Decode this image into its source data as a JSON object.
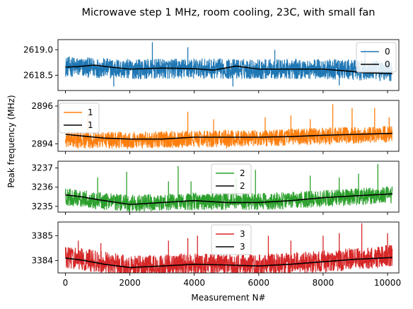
{
  "chart_data": {
    "type": "line",
    "title": "Microwave step 1 MHz, room cooling, 23C, with small fan",
    "xlabel": "Measurement N#",
    "ylabel": "Peak frequency (MHz)",
    "xlim": [
      0,
      10000
    ],
    "x_ticks": [
      0,
      2000,
      4000,
      6000,
      8000,
      10000
    ],
    "x_tick_labels": [
      "0",
      "2000",
      "4000",
      "6000",
      "8000",
      "10000"
    ],
    "n_points": 10150,
    "smooth_color": "#000000",
    "panels": [
      {
        "color": "#1f77b4",
        "ylim": [
          2618.2,
          2619.2
        ],
        "y_ticks": [
          2619.0,
          2618.5
        ],
        "y_tick_labels": [
          "2619.0",
          "2618.5"
        ],
        "legend": [
          "0",
          "0"
        ],
        "legend_loc": "upper-right",
        "raw_center": [
          [
            0,
            2618.67
          ],
          [
            2000,
            2618.62
          ],
          [
            4000,
            2618.63
          ],
          [
            6000,
            2618.62
          ],
          [
            8000,
            2618.62
          ],
          [
            10150,
            2618.58
          ]
        ],
        "noise_band": 0.2,
        "spikes_up": [
          [
            2700,
            2619.15
          ],
          [
            3800,
            2619.05
          ],
          [
            6500,
            2619.0
          ],
          [
            9300,
            2619.02
          ]
        ],
        "spikes_down": [
          [
            1500,
            2618.28
          ],
          [
            5200,
            2618.28
          ],
          [
            8500,
            2618.3
          ]
        ],
        "smooth": [
          [
            0,
            2618.66
          ],
          [
            400,
            2618.67
          ],
          [
            900,
            2618.7
          ],
          [
            1400,
            2618.66
          ],
          [
            2000,
            2618.62
          ],
          [
            3000,
            2618.64
          ],
          [
            4000,
            2618.63
          ],
          [
            4600,
            2618.6
          ],
          [
            5300,
            2618.68
          ],
          [
            6000,
            2618.62
          ],
          [
            7000,
            2618.62
          ],
          [
            8000,
            2618.62
          ],
          [
            8800,
            2618.58
          ],
          [
            9300,
            2618.55
          ],
          [
            10150,
            2618.53
          ]
        ]
      },
      {
        "color": "#ff7f0e",
        "ylim": [
          2893.6,
          2896.3
        ],
        "y_ticks": [
          2896,
          2894
        ],
        "y_tick_labels": [
          "2896",
          "2894"
        ],
        "legend": [
          "1",
          "1"
        ],
        "legend_loc": "upper-left",
        "raw_center": [
          [
            0,
            2894.2
          ],
          [
            2000,
            2894.2
          ],
          [
            4000,
            2894.25
          ],
          [
            6000,
            2894.3
          ],
          [
            8000,
            2894.4
          ],
          [
            10150,
            2894.5
          ]
        ],
        "noise_band": 0.45,
        "spikes_up": [
          [
            700,
            2895.6
          ],
          [
            3800,
            2895.7
          ],
          [
            4600,
            2895.3
          ],
          [
            6200,
            2895.4
          ],
          [
            7000,
            2895.5
          ],
          [
            7600,
            2895.3
          ],
          [
            8300,
            2896.1
          ],
          [
            8900,
            2895.9
          ],
          [
            9600,
            2895.9
          ],
          [
            10050,
            2895.4
          ]
        ],
        "spikes_down": [
          [
            5000,
            2893.75
          ]
        ],
        "smooth": [
          [
            0,
            2894.5
          ],
          [
            600,
            2894.4
          ],
          [
            1200,
            2894.3
          ],
          [
            2000,
            2894.25
          ],
          [
            3000,
            2894.25
          ],
          [
            4000,
            2894.35
          ],
          [
            5000,
            2894.35
          ],
          [
            6000,
            2894.35
          ],
          [
            7000,
            2894.38
          ],
          [
            8000,
            2894.45
          ],
          [
            9000,
            2894.5
          ],
          [
            10150,
            2894.55
          ]
        ]
      },
      {
        "color": "#2ca02c",
        "ylim": [
          3234.7,
          3237.35
        ],
        "y_ticks": [
          3237,
          3236,
          3235
        ],
        "y_tick_labels": [
          "3237",
          "3236",
          "3235"
        ],
        "legend": [
          "2",
          "2"
        ],
        "legend_loc": "upper-center",
        "raw_center": [
          [
            0,
            3235.5
          ],
          [
            1000,
            3235.3
          ],
          [
            2000,
            3235.15
          ],
          [
            4000,
            3235.25
          ],
          [
            6000,
            3235.25
          ],
          [
            8000,
            3235.4
          ],
          [
            10150,
            3235.6
          ]
        ],
        "noise_band": 0.45,
        "spikes_up": [
          [
            1000,
            3236.5
          ],
          [
            1900,
            3236.8
          ],
          [
            3200,
            3236.3
          ],
          [
            3500,
            3237.1
          ],
          [
            3900,
            3236.3
          ],
          [
            5300,
            3236.5
          ],
          [
            5900,
            3236.9
          ],
          [
            7600,
            3236.6
          ],
          [
            8500,
            3236.5
          ],
          [
            9100,
            3236.7
          ],
          [
            9700,
            3237.2
          ]
        ],
        "spikes_down": [
          [
            2000,
            3234.9
          ]
        ],
        "smooth": [
          [
            0,
            3235.6
          ],
          [
            500,
            3235.5
          ],
          [
            1000,
            3235.35
          ],
          [
            2000,
            3235.1
          ],
          [
            3000,
            3235.2
          ],
          [
            4000,
            3235.3
          ],
          [
            5000,
            3235.2
          ],
          [
            6000,
            3235.2
          ],
          [
            7000,
            3235.3
          ],
          [
            8000,
            3235.45
          ],
          [
            9000,
            3235.55
          ],
          [
            10150,
            3235.65
          ]
        ]
      },
      {
        "color": "#d62728",
        "ylim": [
          3383.5,
          3385.55
        ],
        "y_ticks": [
          3385,
          3384
        ],
        "y_tick_labels": [
          "3385",
          "3384"
        ],
        "legend": [
          "3",
          "3"
        ],
        "legend_loc": "upper-center",
        "raw_center": [
          [
            0,
            3384.15
          ],
          [
            1000,
            3383.95
          ],
          [
            2000,
            3383.75
          ],
          [
            3000,
            3383.8
          ],
          [
            4000,
            3383.85
          ],
          [
            6000,
            3383.8
          ],
          [
            8000,
            3383.95
          ],
          [
            10150,
            3384.2
          ]
        ],
        "noise_band": 0.45,
        "spikes_up": [
          [
            400,
            3384.8
          ],
          [
            1100,
            3384.7
          ],
          [
            3200,
            3384.8
          ],
          [
            3800,
            3384.9
          ],
          [
            4100,
            3385.0
          ],
          [
            6300,
            3385.0
          ],
          [
            7000,
            3384.8
          ],
          [
            8000,
            3385.0
          ],
          [
            8500,
            3385.1
          ],
          [
            9200,
            3385.5
          ],
          [
            10000,
            3385.1
          ]
        ],
        "spikes_down": [
          [
            2200,
            3383.55
          ]
        ],
        "smooth": [
          [
            0,
            3384.1
          ],
          [
            600,
            3384.0
          ],
          [
            1200,
            3383.85
          ],
          [
            2000,
            3383.72
          ],
          [
            3000,
            3383.78
          ],
          [
            4000,
            3383.85
          ],
          [
            5000,
            3383.82
          ],
          [
            6000,
            3383.78
          ],
          [
            7000,
            3383.85
          ],
          [
            8000,
            3383.95
          ],
          [
            9000,
            3384.05
          ],
          [
            10150,
            3384.12
          ]
        ]
      }
    ]
  }
}
